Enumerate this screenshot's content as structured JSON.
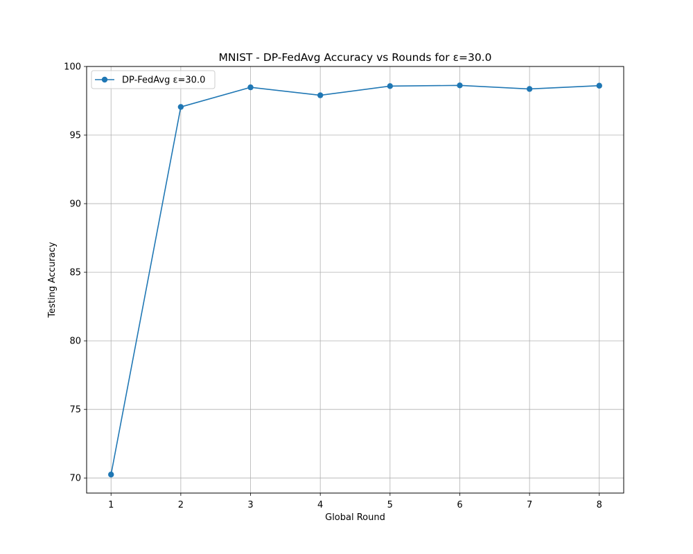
{
  "chart_data": {
    "type": "line",
    "title": "MNIST - DP-FedAvg Accuracy vs Rounds for ε=30.0",
    "xlabel": "Global Round",
    "ylabel": "Testing Accuracy",
    "x": [
      1,
      2,
      3,
      4,
      5,
      6,
      7,
      8
    ],
    "xticks": [
      "1",
      "2",
      "3",
      "4",
      "5",
      "6",
      "7",
      "8"
    ],
    "yticks": [
      "70",
      "75",
      "80",
      "85",
      "90",
      "95",
      "100"
    ],
    "xlim": [
      0.65,
      8.35
    ],
    "ylim": [
      68.9,
      100.0
    ],
    "grid": true,
    "legend_position": "top-left",
    "series": [
      {
        "name": "DP-FedAvg ε=30.0",
        "color": "#1f77b4",
        "marker": "circle",
        "values": [
          70.25,
          97.05,
          98.48,
          97.9,
          98.57,
          98.62,
          98.36,
          98.6
        ]
      }
    ]
  }
}
